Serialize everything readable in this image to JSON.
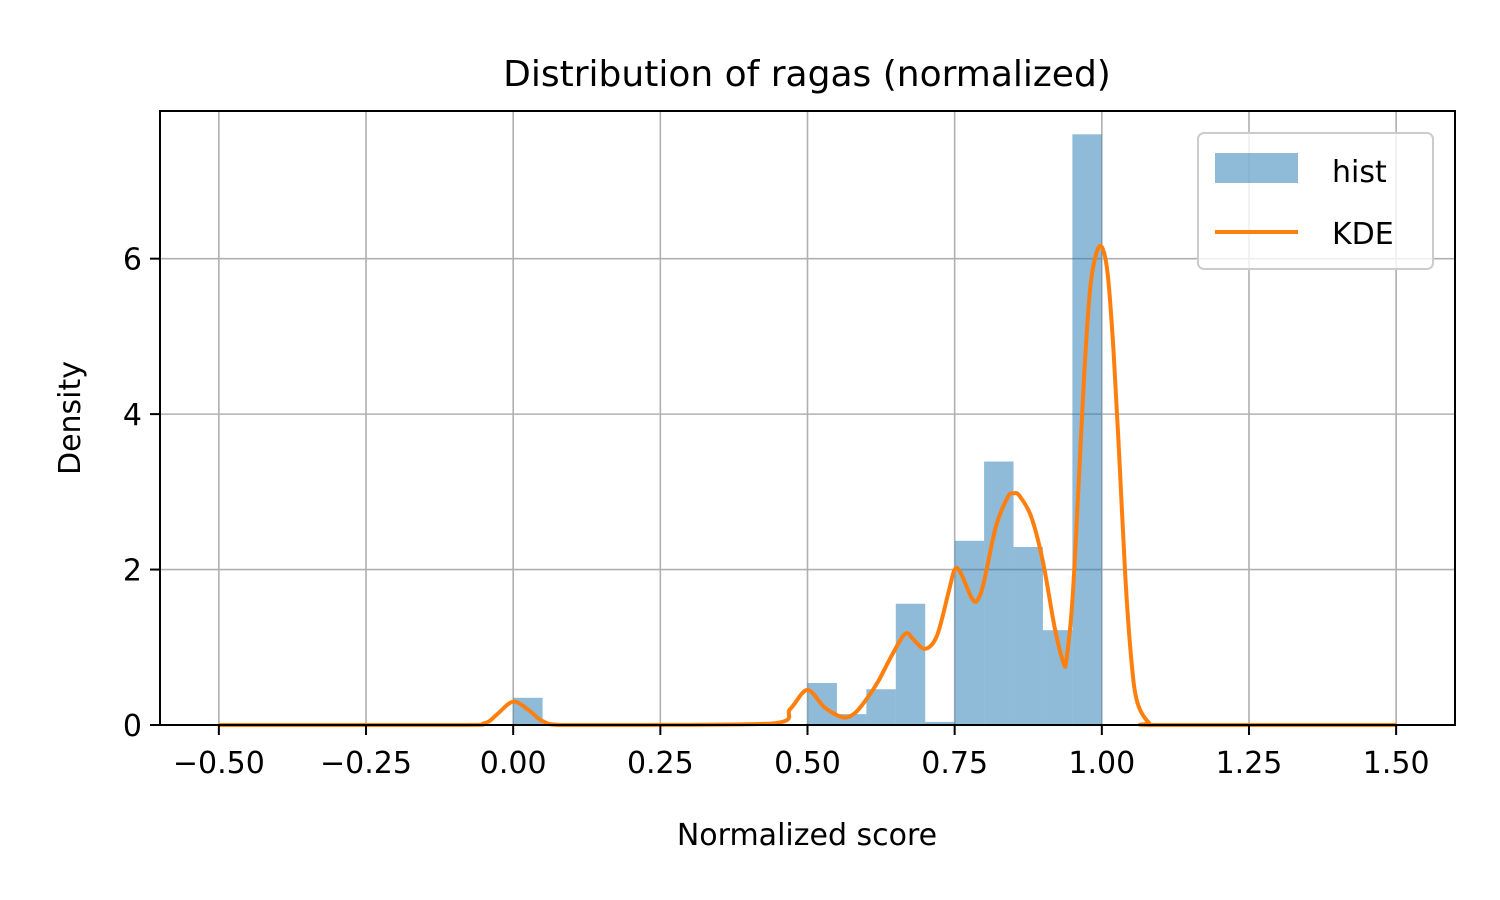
{
  "chart_data": {
    "type": "bar",
    "title": "Distribution of ragas (normalized)",
    "xlabel": "Normalized score",
    "ylabel": "Density",
    "xlim": [
      -0.6,
      1.6
    ],
    "ylim": [
      0,
      7.9
    ],
    "xticks": [
      -0.5,
      -0.25,
      0.0,
      0.25,
      0.5,
      0.75,
      1.0,
      1.25,
      1.5
    ],
    "xtick_labels": [
      "−0.50",
      "−0.25",
      "0.00",
      "0.25",
      "0.50",
      "0.75",
      "1.00",
      "1.25",
      "1.50"
    ],
    "yticks": [
      0,
      2,
      4,
      6
    ],
    "ytick_labels": [
      "0",
      "2",
      "4",
      "6"
    ],
    "grid": true,
    "legend_position": "top-right",
    "hist_color": "#1f77b4",
    "kde_color": "#ff7f0e",
    "series": [
      {
        "name": "hist",
        "kind": "histogram",
        "bins": [
          [
            0.0,
            0.05,
            0.35
          ],
          [
            0.5,
            0.55,
            0.54
          ],
          [
            0.55,
            0.6,
            0.14
          ],
          [
            0.6,
            0.65,
            0.46
          ],
          [
            0.65,
            0.7,
            1.56
          ],
          [
            0.7,
            0.75,
            0.04
          ],
          [
            0.75,
            0.8,
            2.37
          ],
          [
            0.8,
            0.85,
            3.39
          ],
          [
            0.85,
            0.9,
            2.29
          ],
          [
            0.9,
            0.95,
            1.22
          ],
          [
            0.95,
            1.0,
            7.6
          ]
        ]
      },
      {
        "name": "KDE",
        "kind": "line",
        "x": [
          -0.5,
          -0.1,
          -0.05,
          -0.03,
          -0.01,
          0.0,
          0.01,
          0.03,
          0.05,
          0.08,
          0.2,
          0.44,
          0.47,
          0.49,
          0.5,
          0.51,
          0.53,
          0.56,
          0.58,
          0.6,
          0.62,
          0.64,
          0.66,
          0.67,
          0.68,
          0.7,
          0.72,
          0.74,
          0.75,
          0.76,
          0.78,
          0.79,
          0.8,
          0.82,
          0.84,
          0.85,
          0.86,
          0.88,
          0.9,
          0.92,
          0.935,
          0.94,
          0.95,
          0.96,
          0.97,
          0.98,
          0.99,
          1.0,
          1.01,
          1.02,
          1.03,
          1.04,
          1.05,
          1.06,
          1.08,
          1.1,
          1.5
        ],
        "y": [
          0.0,
          0.0,
          0.02,
          0.12,
          0.26,
          0.3,
          0.28,
          0.17,
          0.05,
          0.0,
          0.0,
          0.02,
          0.2,
          0.4,
          0.45,
          0.4,
          0.22,
          0.1,
          0.15,
          0.33,
          0.56,
          0.85,
          1.12,
          1.18,
          1.1,
          0.98,
          1.15,
          1.72,
          2.0,
          1.96,
          1.62,
          1.62,
          1.85,
          2.55,
          2.93,
          2.98,
          2.95,
          2.68,
          2.1,
          1.25,
          0.8,
          0.85,
          1.6,
          3.0,
          4.5,
          5.6,
          6.05,
          6.15,
          5.8,
          4.8,
          3.4,
          1.9,
          0.85,
          0.3,
          0.03,
          0.0,
          0.0
        ]
      }
    ]
  }
}
